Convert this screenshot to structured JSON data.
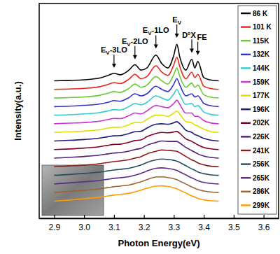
{
  "chart_data": {
    "type": "line",
    "x_label": "Photon Energy(eV)",
    "y_label": "Intensity(a.u.)",
    "x": [
      2.9,
      2.95,
      3.0,
      3.05,
      3.08,
      3.1,
      3.12,
      3.15,
      3.17,
      3.19,
      3.21,
      3.24,
      3.26,
      3.28,
      3.3,
      3.31,
      3.32,
      3.34,
      3.36,
      3.37,
      3.38,
      3.4,
      3.42,
      3.45
    ],
    "series": [
      {
        "name": "86 K",
        "color": "#000000",
        "values": [
          64,
          64.2,
          64.5,
          65.2,
          66.5,
          67.5,
          66.8,
          69,
          71.5,
          69,
          70,
          76,
          72,
          70,
          76,
          81,
          75,
          69,
          74,
          70,
          73,
          65.5,
          64.5,
          64
        ]
      },
      {
        "name": "101 K",
        "color": "#e8261c",
        "values": [
          60,
          60.2,
          60.5,
          61.2,
          62.3,
          63.2,
          62.7,
          64.8,
          67,
          65,
          66,
          71,
          68,
          66.5,
          71.5,
          75,
          70.5,
          65,
          68,
          65.5,
          67,
          61.5,
          60.5,
          60
        ]
      },
      {
        "name": "115K",
        "color": "#66cc33",
        "values": [
          56,
          56.2,
          56.5,
          57.2,
          58.2,
          59,
          58.6,
          60.5,
          62.5,
          61,
          62,
          66,
          64,
          62.5,
          67,
          70,
          66,
          61,
          63,
          61,
          62,
          57.5,
          56.5,
          56
        ]
      },
      {
        "name": "132K",
        "color": "#3333cc",
        "values": [
          52,
          52.2,
          52.6,
          53.2,
          54,
          54.8,
          54.5,
          56.2,
          58,
          57,
          58,
          61.5,
          60,
          59,
          62.5,
          65,
          62,
          57,
          58,
          56.5,
          57,
          53.5,
          52.5,
          52
        ]
      },
      {
        "name": "144K",
        "color": "#33cccc",
        "values": [
          48,
          48.2,
          48.6,
          49.2,
          50,
          50.6,
          50.4,
          52,
          53.5,
          52.8,
          54,
          57,
          56,
          55,
          58,
          60,
          57.5,
          53,
          53.5,
          52,
          52.5,
          49.5,
          48.5,
          48
        ]
      },
      {
        "name": "159K",
        "color": "#cc33cc",
        "values": [
          44,
          44.3,
          44.6,
          45.2,
          46,
          46.5,
          46.4,
          47.8,
          49,
          48.6,
          50,
          52.5,
          52,
          51.5,
          53.5,
          55,
          53,
          49,
          49,
          47.5,
          47.5,
          45.5,
          44.5,
          44
        ]
      },
      {
        "name": "177K",
        "color": "#e0e000",
        "values": [
          40,
          40.3,
          40.6,
          41.2,
          42,
          42.4,
          42.4,
          43.6,
          44.6,
          44.5,
          46,
          48,
          48,
          47.5,
          49,
          50,
          48.5,
          45,
          44.5,
          43.5,
          43,
          41.5,
          40.5,
          40
        ]
      },
      {
        "name": "196K",
        "color": "#1a1a80",
        "values": [
          36,
          36.3,
          36.7,
          37.3,
          38,
          38.4,
          38.5,
          39.5,
          40.3,
          40.5,
          42,
          43.8,
          44,
          43.8,
          44.5,
          45,
          44,
          41,
          40,
          39,
          38.5,
          37.2,
          36.5,
          36
        ]
      },
      {
        "name": "202K",
        "color": "#800020",
        "values": [
          32,
          32.3,
          32.7,
          33.3,
          34,
          34.4,
          34.5,
          35.4,
          36.2,
          36.5,
          38,
          39.5,
          40,
          39.8,
          40.2,
          40.5,
          39.5,
          37,
          35.8,
          35,
          34.2,
          33,
          32.4,
          32
        ]
      },
      {
        "name": "226K",
        "color": "#4b1f7a",
        "values": [
          28,
          28.4,
          28.8,
          29.4,
          30,
          30.4,
          30.6,
          31.3,
          32,
          32.6,
          34,
          35.3,
          36,
          35.8,
          35.8,
          35.8,
          35,
          33,
          31.5,
          30.8,
          30,
          29,
          28.4,
          28
        ]
      },
      {
        "name": "241K",
        "color": "#8b1a1a",
        "values": [
          24,
          24.4,
          24.8,
          25.4,
          26,
          26.4,
          26.7,
          27.3,
          28,
          28.7,
          30,
          31.2,
          31.8,
          31.6,
          31.4,
          31.2,
          30.5,
          28.8,
          27.2,
          26.6,
          25.8,
          24.9,
          24.3,
          24
        ]
      },
      {
        "name": "256K",
        "color": "#1f4e5f",
        "values": [
          20,
          20.4,
          20.9,
          21.5,
          22.1,
          22.5,
          22.8,
          23.3,
          24,
          24.8,
          26,
          27.2,
          27.6,
          27.4,
          27,
          26.6,
          26,
          24.5,
          23,
          22.4,
          21.6,
          20.8,
          20.3,
          20
        ]
      },
      {
        "name": "265K",
        "color": "#5a2d82",
        "values": [
          16,
          16.5,
          17,
          17.6,
          18.2,
          18.6,
          18.9,
          19.4,
          20.1,
          20.9,
          22,
          23.3,
          23.5,
          23.2,
          22.7,
          22.3,
          21.6,
          20.2,
          18.8,
          18.2,
          17.5,
          16.7,
          16.3,
          16
        ]
      },
      {
        "name": "286K",
        "color": "#996633",
        "values": [
          12,
          12.5,
          13,
          13.7,
          14.3,
          14.7,
          15,
          15.5,
          16.2,
          17,
          18,
          19.2,
          19.3,
          19,
          18.4,
          18,
          17.3,
          16,
          14.6,
          14,
          13.4,
          12.7,
          12.3,
          12
        ]
      },
      {
        "name": "299K",
        "color": "#ff9900",
        "values": [
          8,
          8.5,
          9.1,
          9.8,
          10.4,
          10.8,
          11.1,
          11.6,
          12.3,
          13.1,
          14,
          15,
          15.1,
          14.8,
          14.2,
          13.8,
          13.1,
          11.8,
          10.4,
          9.9,
          9.3,
          8.6,
          8.2,
          8
        ]
      }
    ],
    "xlim": [
      2.85,
      3.65
    ],
    "xticks": [
      2.9,
      {
        "value": 3,
        "label": "3.0"
      },
      3.1,
      3.2,
      3.3,
      3.4,
      3.5,
      3.6
    ],
    "ylim": [
      0,
      100
    ],
    "tick_labels": "x",
    "legend": "upper right",
    "annotations": [
      {
        "text": "EV-3LO",
        "x": 3.1,
        "y": 70
      },
      {
        "text": "EV-2LO",
        "x": 3.17,
        "y": 74
      },
      {
        "text": "EV-1LO",
        "x": 3.24,
        "y": 79
      },
      {
        "text": "EV",
        "x": 3.31,
        "y": 84
      },
      {
        "text": "D°X",
        "x": 3.36,
        "y": 77
      },
      {
        "text": "FE",
        "x": 3.38,
        "y": 76
      }
    ]
  }
}
